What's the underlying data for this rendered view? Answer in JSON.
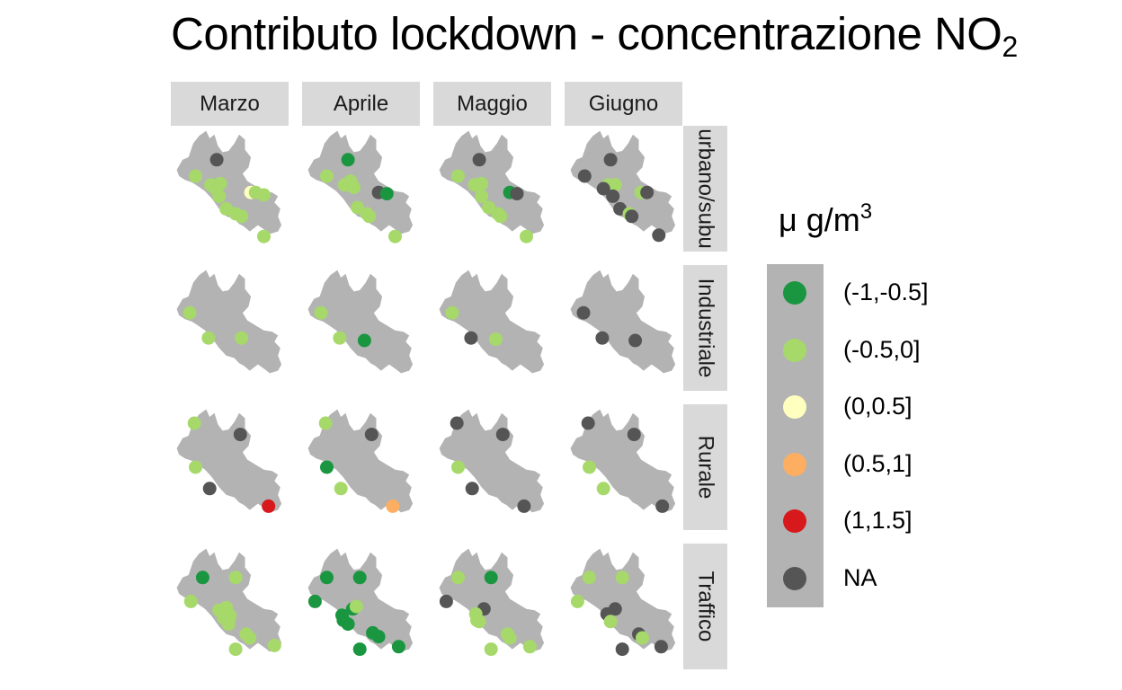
{
  "chart_data": {
    "type": "scatter",
    "title": "Contributo lockdown - concentrazione NO",
    "title_subscript": "2",
    "columns": [
      "Marzo",
      "Aprile",
      "Maggio",
      "Giugno"
    ],
    "rows": [
      "urbano/suburbano",
      "Industriale",
      "Rurale",
      "Traffico"
    ],
    "rows_displayed": [
      "urbano/subu",
      "Industriale",
      "Rurale",
      "Traffico"
    ],
    "legend": {
      "title": "μ g/m",
      "title_superscript": "3",
      "placement": "right",
      "items": [
        {
          "label": "(-1,-0.5]",
          "color": "#1a9641"
        },
        {
          "label": "(-0.5,0]",
          "color": "#a6d96a"
        },
        {
          "label": "(0,0.5]",
          "color": "#ffffbf"
        },
        {
          "label": "(0.5,1]",
          "color": "#fdae61"
        },
        {
          "label": "(1,1.5]",
          "color": "#d7191c"
        },
        {
          "label": "NA",
          "color": "#555555"
        }
      ]
    },
    "map_fill": "#b3b3b3",
    "panels": [
      {
        "row": 0,
        "col": 0,
        "points": [
          {
            "x": 0.21,
            "y": 0.4,
            "c": 1
          },
          {
            "x": 0.39,
            "y": 0.27,
            "c": 5
          },
          {
            "x": 0.34,
            "y": 0.47,
            "c": 1
          },
          {
            "x": 0.38,
            "y": 0.5,
            "c": 1
          },
          {
            "x": 0.42,
            "y": 0.46,
            "c": 1
          },
          {
            "x": 0.41,
            "y": 0.56,
            "c": 1
          },
          {
            "x": 0.47,
            "y": 0.66,
            "c": 1
          },
          {
            "x": 0.55,
            "y": 0.7,
            "c": 1
          },
          {
            "x": 0.6,
            "y": 0.72,
            "c": 1
          },
          {
            "x": 0.68,
            "y": 0.53,
            "c": 2
          },
          {
            "x": 0.72,
            "y": 0.53,
            "c": 1
          },
          {
            "x": 0.79,
            "y": 0.55,
            "c": 1
          },
          {
            "x": 0.79,
            "y": 0.88,
            "c": 1
          }
        ]
      },
      {
        "row": 0,
        "col": 1,
        "points": [
          {
            "x": 0.21,
            "y": 0.4,
            "c": 1
          },
          {
            "x": 0.39,
            "y": 0.27,
            "c": 0
          },
          {
            "x": 0.36,
            "y": 0.47,
            "c": 1
          },
          {
            "x": 0.41,
            "y": 0.44,
            "c": 1
          },
          {
            "x": 0.44,
            "y": 0.49,
            "c": 1
          },
          {
            "x": 0.47,
            "y": 0.65,
            "c": 1
          },
          {
            "x": 0.55,
            "y": 0.7,
            "c": 1
          },
          {
            "x": 0.57,
            "y": 0.72,
            "c": 1
          },
          {
            "x": 0.65,
            "y": 0.53,
            "c": 5
          },
          {
            "x": 0.72,
            "y": 0.54,
            "c": 0
          },
          {
            "x": 0.79,
            "y": 0.88,
            "c": 1
          }
        ]
      },
      {
        "row": 0,
        "col": 2,
        "points": [
          {
            "x": 0.21,
            "y": 0.4,
            "c": 1
          },
          {
            "x": 0.39,
            "y": 0.27,
            "c": 5
          },
          {
            "x": 0.35,
            "y": 0.47,
            "c": 1
          },
          {
            "x": 0.41,
            "y": 0.46,
            "c": 1
          },
          {
            "x": 0.41,
            "y": 0.56,
            "c": 1
          },
          {
            "x": 0.47,
            "y": 0.65,
            "c": 1
          },
          {
            "x": 0.55,
            "y": 0.7,
            "c": 1
          },
          {
            "x": 0.57,
            "y": 0.72,
            "c": 1
          },
          {
            "x": 0.65,
            "y": 0.53,
            "c": 0
          },
          {
            "x": 0.71,
            "y": 0.54,
            "c": 5
          },
          {
            "x": 0.79,
            "y": 0.88,
            "c": 1
          }
        ]
      },
      {
        "row": 0,
        "col": 3,
        "points": [
          {
            "x": 0.17,
            "y": 0.4,
            "c": 5
          },
          {
            "x": 0.39,
            "y": 0.27,
            "c": 5
          },
          {
            "x": 0.37,
            "y": 0.47,
            "c": 1
          },
          {
            "x": 0.43,
            "y": 0.47,
            "c": 1
          },
          {
            "x": 0.33,
            "y": 0.5,
            "c": 5
          },
          {
            "x": 0.41,
            "y": 0.56,
            "c": 5
          },
          {
            "x": 0.47,
            "y": 0.66,
            "c": 5
          },
          {
            "x": 0.55,
            "y": 0.7,
            "c": 1
          },
          {
            "x": 0.57,
            "y": 0.72,
            "c": 5
          },
          {
            "x": 0.65,
            "y": 0.53,
            "c": 1
          },
          {
            "x": 0.7,
            "y": 0.53,
            "c": 5
          },
          {
            "x": 0.8,
            "y": 0.87,
            "c": 5
          }
        ]
      },
      {
        "row": 1,
        "col": 0,
        "points": [
          {
            "x": 0.16,
            "y": 0.38,
            "c": 1
          },
          {
            "x": 0.32,
            "y": 0.58,
            "c": 1
          },
          {
            "x": 0.6,
            "y": 0.58,
            "c": 1
          }
        ]
      },
      {
        "row": 1,
        "col": 1,
        "points": [
          {
            "x": 0.16,
            "y": 0.38,
            "c": 1
          },
          {
            "x": 0.32,
            "y": 0.58,
            "c": 1
          },
          {
            "x": 0.53,
            "y": 0.6,
            "c": 0
          }
        ]
      },
      {
        "row": 1,
        "col": 2,
        "points": [
          {
            "x": 0.16,
            "y": 0.38,
            "c": 1
          },
          {
            "x": 0.32,
            "y": 0.58,
            "c": 5
          },
          {
            "x": 0.53,
            "y": 0.59,
            "c": 1
          }
        ]
      },
      {
        "row": 1,
        "col": 3,
        "points": [
          {
            "x": 0.16,
            "y": 0.38,
            "c": 5
          },
          {
            "x": 0.32,
            "y": 0.58,
            "c": 5
          },
          {
            "x": 0.6,
            "y": 0.6,
            "c": 5
          }
        ]
      },
      {
        "row": 2,
        "col": 0,
        "points": [
          {
            "x": 0.2,
            "y": 0.15,
            "c": 1
          },
          {
            "x": 0.59,
            "y": 0.24,
            "c": 5
          },
          {
            "x": 0.21,
            "y": 0.5,
            "c": 1
          },
          {
            "x": 0.33,
            "y": 0.67,
            "c": 5
          },
          {
            "x": 0.83,
            "y": 0.81,
            "c": 4
          }
        ]
      },
      {
        "row": 2,
        "col": 1,
        "points": [
          {
            "x": 0.2,
            "y": 0.15,
            "c": 1
          },
          {
            "x": 0.59,
            "y": 0.24,
            "c": 5
          },
          {
            "x": 0.21,
            "y": 0.5,
            "c": 0
          },
          {
            "x": 0.33,
            "y": 0.67,
            "c": 1
          },
          {
            "x": 0.77,
            "y": 0.81,
            "c": 3
          }
        ]
      },
      {
        "row": 2,
        "col": 2,
        "points": [
          {
            "x": 0.2,
            "y": 0.15,
            "c": 5
          },
          {
            "x": 0.59,
            "y": 0.24,
            "c": 5
          },
          {
            "x": 0.21,
            "y": 0.5,
            "c": 1
          },
          {
            "x": 0.33,
            "y": 0.67,
            "c": 5
          },
          {
            "x": 0.77,
            "y": 0.81,
            "c": 5
          }
        ]
      },
      {
        "row": 2,
        "col": 3,
        "points": [
          {
            "x": 0.2,
            "y": 0.15,
            "c": 5
          },
          {
            "x": 0.59,
            "y": 0.24,
            "c": 5
          },
          {
            "x": 0.21,
            "y": 0.5,
            "c": 1
          },
          {
            "x": 0.33,
            "y": 0.67,
            "c": 1
          },
          {
            "x": 0.83,
            "y": 0.81,
            "c": 5
          }
        ]
      },
      {
        "row": 3,
        "col": 0,
        "points": [
          {
            "x": 0.27,
            "y": 0.27,
            "c": 0
          },
          {
            "x": 0.55,
            "y": 0.27,
            "c": 1
          },
          {
            "x": 0.17,
            "y": 0.46,
            "c": 1
          },
          {
            "x": 0.41,
            "y": 0.53,
            "c": 1
          },
          {
            "x": 0.47,
            "y": 0.51,
            "c": 1
          },
          {
            "x": 0.5,
            "y": 0.58,
            "c": 1
          },
          {
            "x": 0.5,
            "y": 0.57,
            "c": 1
          },
          {
            "x": 0.45,
            "y": 0.59,
            "c": 1
          },
          {
            "x": 0.49,
            "y": 0.64,
            "c": 1
          },
          {
            "x": 0.64,
            "y": 0.72,
            "c": 1
          },
          {
            "x": 0.67,
            "y": 0.75,
            "c": 1
          },
          {
            "x": 0.55,
            "y": 0.84,
            "c": 1
          },
          {
            "x": 0.88,
            "y": 0.81,
            "c": 1
          }
        ]
      },
      {
        "row": 3,
        "col": 1,
        "points": [
          {
            "x": 0.21,
            "y": 0.27,
            "c": 0
          },
          {
            "x": 0.49,
            "y": 0.27,
            "c": 0
          },
          {
            "x": 0.11,
            "y": 0.46,
            "c": 0
          },
          {
            "x": 0.43,
            "y": 0.52,
            "c": 0
          },
          {
            "x": 0.46,
            "y": 0.5,
            "c": 1
          },
          {
            "x": 0.34,
            "y": 0.57,
            "c": 0
          },
          {
            "x": 0.35,
            "y": 0.61,
            "c": 0
          },
          {
            "x": 0.39,
            "y": 0.64,
            "c": 0
          },
          {
            "x": 0.6,
            "y": 0.71,
            "c": 0
          },
          {
            "x": 0.65,
            "y": 0.74,
            "c": 0
          },
          {
            "x": 0.49,
            "y": 0.84,
            "c": 0
          },
          {
            "x": 0.82,
            "y": 0.82,
            "c": 0
          }
        ]
      },
      {
        "row": 3,
        "col": 2,
        "points": [
          {
            "x": 0.21,
            "y": 0.27,
            "c": 1
          },
          {
            "x": 0.49,
            "y": 0.27,
            "c": 0
          },
          {
            "x": 0.11,
            "y": 0.46,
            "c": 5
          },
          {
            "x": 0.43,
            "y": 0.52,
            "c": 5
          },
          {
            "x": 0.36,
            "y": 0.56,
            "c": 1
          },
          {
            "x": 0.37,
            "y": 0.61,
            "c": 1
          },
          {
            "x": 0.39,
            "y": 0.62,
            "c": 1
          },
          {
            "x": 0.63,
            "y": 0.72,
            "c": 1
          },
          {
            "x": 0.65,
            "y": 0.75,
            "c": 1
          },
          {
            "x": 0.49,
            "y": 0.84,
            "c": 1
          },
          {
            "x": 0.82,
            "y": 0.82,
            "c": 1
          }
        ]
      },
      {
        "row": 3,
        "col": 3,
        "points": [
          {
            "x": 0.21,
            "y": 0.27,
            "c": 1
          },
          {
            "x": 0.49,
            "y": 0.27,
            "c": 1
          },
          {
            "x": 0.11,
            "y": 0.46,
            "c": 1
          },
          {
            "x": 0.43,
            "y": 0.52,
            "c": 5
          },
          {
            "x": 0.36,
            "y": 0.56,
            "c": 5
          },
          {
            "x": 0.39,
            "y": 0.62,
            "c": 1
          },
          {
            "x": 0.63,
            "y": 0.72,
            "c": 5
          },
          {
            "x": 0.66,
            "y": 0.75,
            "c": 1
          },
          {
            "x": 0.49,
            "y": 0.84,
            "c": 5
          },
          {
            "x": 0.82,
            "y": 0.82,
            "c": 5
          }
        ]
      }
    ]
  }
}
